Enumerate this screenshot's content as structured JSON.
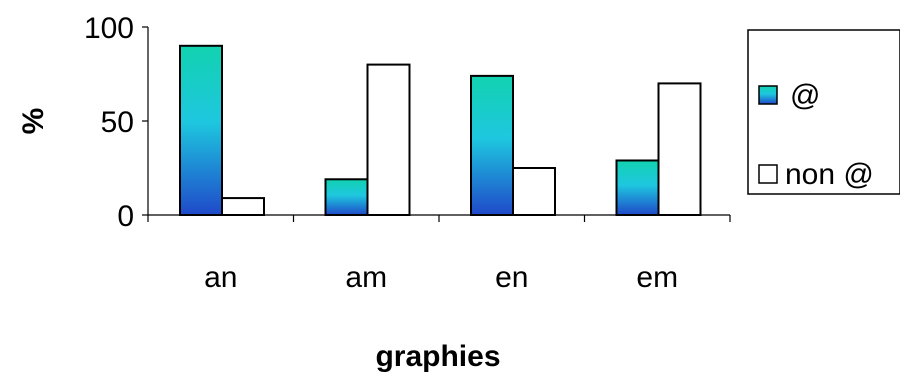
{
  "chart_data": {
    "type": "bar",
    "categories": [
      "an",
      "am",
      "en",
      "em"
    ],
    "series": [
      {
        "name": "@",
        "values": [
          90,
          19,
          74,
          29
        ],
        "fill": "gradient"
      },
      {
        "name": "non @",
        "values": [
          9,
          80,
          25,
          70
        ],
        "fill": "#ffffff"
      }
    ],
    "xlabel": "graphies",
    "ylabel": "%",
    "ylim": [
      0,
      100
    ],
    "yticks": [
      0,
      50,
      100
    ],
    "grid": false,
    "legend_position": "right",
    "colors": {
      "gradient_top": "#12d2b0",
      "gradient_mid": "#1ec7df",
      "gradient_bottom": "#1f49c9",
      "outline": "#000000"
    }
  }
}
